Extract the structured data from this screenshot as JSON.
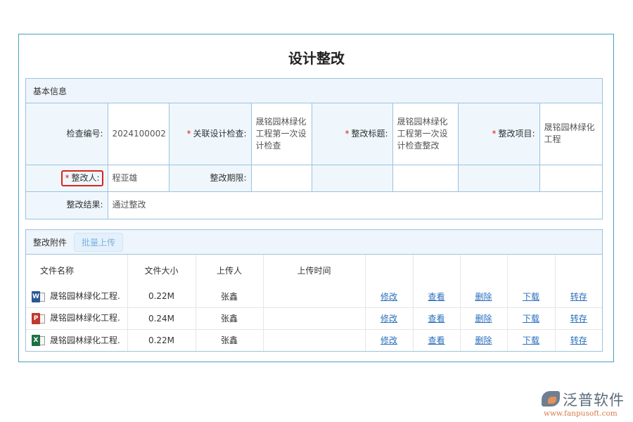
{
  "title": "设计整改",
  "basic": {
    "header": "基本信息",
    "fields": {
      "check_no_label": "检查编号:",
      "check_no": "2024100002",
      "related_label": "关联设计检查:",
      "related": "晟铭园林绿化工程第一次设计检查",
      "subject_label": "整改标题:",
      "subject": "晟铭园林绿化工程第一次设计检查整改",
      "project_label": "整改项目:",
      "project": "晟铭园林绿化工程",
      "person_label": "整改人:",
      "person": "程亚雄",
      "deadline_label": "整改期限:",
      "deadline": "",
      "result_label": "整改结果:",
      "result": "通过整改"
    },
    "required_mark": "*"
  },
  "attach": {
    "header": "整改附件",
    "batch_upload": "批量上传",
    "columns": [
      "文件名称",
      "文件大小",
      "上传人",
      "上传时间"
    ],
    "actions": [
      "修改",
      "查看",
      "删除",
      "下载",
      "转存"
    ],
    "rows": [
      {
        "type": "word",
        "icon_letter": "W",
        "color": "#2b5797",
        "name": "晟铭园林绿化工程.",
        "size": "0.22M",
        "uploader": "张鑫",
        "time": ""
      },
      {
        "type": "ppt",
        "icon_letter": "P",
        "color": "#c0392b",
        "name": "晟铭园林绿化工程.",
        "size": "0.24M",
        "uploader": "张鑫",
        "time": ""
      },
      {
        "type": "excel",
        "icon_letter": "X",
        "color": "#1e7145",
        "name": "晟铭园林绿化工程.",
        "size": "0.22M",
        "uploader": "张鑫",
        "time": ""
      }
    ]
  },
  "logo": {
    "cn": "泛普软件",
    "en": "www.fanpusoft.com"
  }
}
